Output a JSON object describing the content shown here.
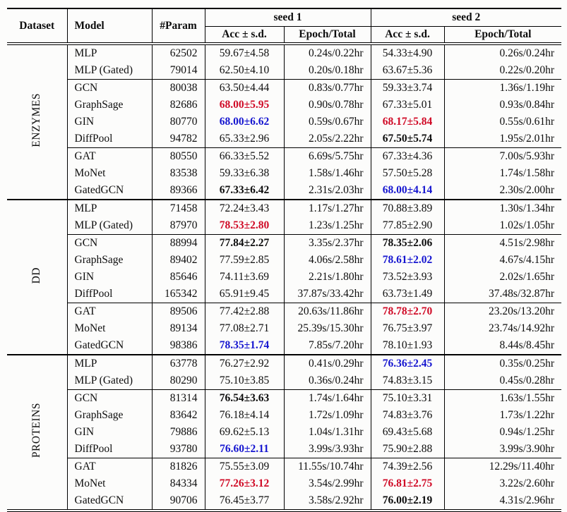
{
  "header": {
    "dataset": "Dataset",
    "model": "Model",
    "param": "#Param",
    "seed1": "seed 1",
    "seed2": "seed 2",
    "acc": "Acc ± s.d.",
    "epoch": "Epoch/Total"
  },
  "colors": {
    "red": "#d00a26",
    "blue": "#1515d0"
  },
  "groups": [
    {
      "dataset": "ENZYMES",
      "rows": [
        {
          "model": "MLP",
          "param": "62502",
          "s1_acc": "59.67±4.58",
          "s1_style": "",
          "s1_time": "0.24s/0.22hr",
          "s2_acc": "54.33±4.90",
          "s2_style": "",
          "s2_time": "0.26s/0.24hr"
        },
        {
          "model": "MLP (Gated)",
          "param": "79014",
          "s1_acc": "62.50±4.10",
          "s1_style": "",
          "s1_time": "0.20s/0.18hr",
          "s2_acc": "63.67±5.36",
          "s2_style": "",
          "s2_time": "0.22s/0.20hr"
        },
        {
          "model": "GCN",
          "param": "80038",
          "s1_acc": "63.50±4.44",
          "s1_style": "",
          "s1_time": "0.83s/0.77hr",
          "s2_acc": "59.33±3.74",
          "s2_style": "",
          "s2_time": "1.36s/1.19hr"
        },
        {
          "model": "GraphSage",
          "param": "82686",
          "s1_acc": "68.00±5.95",
          "s1_style": "red",
          "s1_time": "0.90s/0.78hr",
          "s2_acc": "67.33±5.01",
          "s2_style": "",
          "s2_time": "0.93s/0.84hr"
        },
        {
          "model": "GIN",
          "param": "80770",
          "s1_acc": "68.00±6.62",
          "s1_style": "blue",
          "s1_time": "0.59s/0.67hr",
          "s2_acc": "68.17±5.84",
          "s2_style": "red",
          "s2_time": "0.55s/0.61hr"
        },
        {
          "model": "DiffPool",
          "param": "94782",
          "s1_acc": "65.33±2.96",
          "s1_style": "",
          "s1_time": "2.05s/2.22hr",
          "s2_acc": "67.50±5.74",
          "s2_style": "bold",
          "s2_time": "1.95s/2.01hr"
        },
        {
          "model": "GAT",
          "param": "80550",
          "s1_acc": "66.33±5.52",
          "s1_style": "",
          "s1_time": "6.69s/5.75hr",
          "s2_acc": "67.33±4.36",
          "s2_style": "",
          "s2_time": "7.00s/5.93hr"
        },
        {
          "model": "MoNet",
          "param": "83538",
          "s1_acc": "59.33±6.38",
          "s1_style": "",
          "s1_time": "1.58s/1.46hr",
          "s2_acc": "57.50±5.28",
          "s2_style": "",
          "s2_time": "1.74s/1.58hr"
        },
        {
          "model": "GatedGCN",
          "param": "89366",
          "s1_acc": "67.33±6.42",
          "s1_style": "bold",
          "s1_time": "2.31s/2.03hr",
          "s2_acc": "68.00±4.14",
          "s2_style": "blue",
          "s2_time": "2.30s/2.00hr"
        }
      ]
    },
    {
      "dataset": "DD",
      "rows": [
        {
          "model": "MLP",
          "param": "71458",
          "s1_acc": "72.24±3.43",
          "s1_style": "",
          "s1_time": "1.17s/1.27hr",
          "s2_acc": "70.88±3.89",
          "s2_style": "",
          "s2_time": "1.30s/1.34hr"
        },
        {
          "model": "MLP (Gated)",
          "param": "87970",
          "s1_acc": "78.53±2.80",
          "s1_style": "red",
          "s1_time": "1.23s/1.25hr",
          "s2_acc": "77.85±2.90",
          "s2_style": "",
          "s2_time": "1.02s/1.05hr"
        },
        {
          "model": "GCN",
          "param": "88994",
          "s1_acc": "77.84±2.27",
          "s1_style": "bold",
          "s1_time": "3.35s/2.37hr",
          "s2_acc": "78.35±2.06",
          "s2_style": "bold",
          "s2_time": "4.51s/2.98hr"
        },
        {
          "model": "GraphSage",
          "param": "89402",
          "s1_acc": "77.59±2.85",
          "s1_style": "",
          "s1_time": "4.06s/2.58hr",
          "s2_acc": "78.61±2.02",
          "s2_style": "blue",
          "s2_time": "4.67s/4.15hr"
        },
        {
          "model": "GIN",
          "param": "85646",
          "s1_acc": "74.11±3.69",
          "s1_style": "",
          "s1_time": "2.21s/1.80hr",
          "s2_acc": "73.52±3.93",
          "s2_style": "",
          "s2_time": "2.02s/1.65hr"
        },
        {
          "model": "DiffPool",
          "param": "165342",
          "s1_acc": "65.91±9.45",
          "s1_style": "",
          "s1_time": "37.87s/33.42hr",
          "s2_acc": "63.73±1.49",
          "s2_style": "",
          "s2_time": "37.48s/32.87hr"
        },
        {
          "model": "GAT",
          "param": "89506",
          "s1_acc": "77.42±2.88",
          "s1_style": "",
          "s1_time": "20.63s/11.86hr",
          "s2_acc": "78.78±2.70",
          "s2_style": "red",
          "s2_time": "23.20s/13.20hr"
        },
        {
          "model": "MoNet",
          "param": "89134",
          "s1_acc": "77.08±2.71",
          "s1_style": "",
          "s1_time": "25.39s/15.30hr",
          "s2_acc": "76.75±3.97",
          "s2_style": "",
          "s2_time": "23.74s/14.92hr"
        },
        {
          "model": "GatedGCN",
          "param": "98386",
          "s1_acc": "78.35±1.74",
          "s1_style": "blue",
          "s1_time": "7.85s/7.20hr",
          "s2_acc": "78.10±1.93",
          "s2_style": "",
          "s2_time": "8.44s/8.45hr"
        }
      ]
    },
    {
      "dataset": "PROTEINS",
      "rows": [
        {
          "model": "MLP",
          "param": "63778",
          "s1_acc": "76.27±2.92",
          "s1_style": "",
          "s1_time": "0.41s/0.29hr",
          "s2_acc": "76.36±2.45",
          "s2_style": "blue",
          "s2_time": "0.35s/0.25hr"
        },
        {
          "model": "MLP (Gated)",
          "param": "80290",
          "s1_acc": "75.10±3.85",
          "s1_style": "",
          "s1_time": "0.36s/0.24hr",
          "s2_acc": "74.83±3.15",
          "s2_style": "",
          "s2_time": "0.45s/0.28hr"
        },
        {
          "model": "GCN",
          "param": "81314",
          "s1_acc": "76.54±3.63",
          "s1_style": "bold",
          "s1_time": "1.74s/1.64hr",
          "s2_acc": "75.10±3.31",
          "s2_style": "",
          "s2_time": "1.63s/1.55hr"
        },
        {
          "model": "GraphSage",
          "param": "83642",
          "s1_acc": "76.18±4.14",
          "s1_style": "",
          "s1_time": "1.72s/1.09hr",
          "s2_acc": "74.83±3.76",
          "s2_style": "",
          "s2_time": "1.73s/1.22hr"
        },
        {
          "model": "GIN",
          "param": "79886",
          "s1_acc": "69.62±5.13",
          "s1_style": "",
          "s1_time": "1.04s/1.31hr",
          "s2_acc": "69.43±5.68",
          "s2_style": "",
          "s2_time": "0.94s/1.25hr"
        },
        {
          "model": "DiffPool",
          "param": "93780",
          "s1_acc": "76.60±2.11",
          "s1_style": "blue",
          "s1_time": "3.99s/3.93hr",
          "s2_acc": "75.90±2.88",
          "s2_style": "",
          "s2_time": "3.99s/3.90hr"
        },
        {
          "model": "GAT",
          "param": "81826",
          "s1_acc": "75.55±3.09",
          "s1_style": "",
          "s1_time": "11.55s/10.74hr",
          "s2_acc": "74.39±2.56",
          "s2_style": "",
          "s2_time": "12.29s/11.40hr"
        },
        {
          "model": "MoNet",
          "param": "84334",
          "s1_acc": "77.26±3.12",
          "s1_style": "red",
          "s1_time": "3.54s/2.99hr",
          "s2_acc": "76.81±2.75",
          "s2_style": "red",
          "s2_time": "3.22s/2.60hr"
        },
        {
          "model": "GatedGCN",
          "param": "90706",
          "s1_acc": "76.45±3.77",
          "s1_style": "",
          "s1_time": "3.58s/2.92hr",
          "s2_acc": "76.00±2.19",
          "s2_style": "bold",
          "s2_time": "4.31s/2.96hr"
        }
      ]
    }
  ]
}
